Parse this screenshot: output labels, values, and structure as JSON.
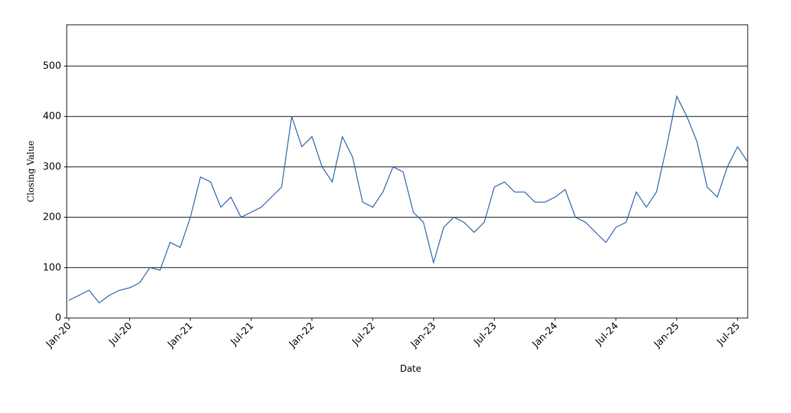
{
  "chart_data": {
    "type": "line",
    "x_label": "Date",
    "y_label": "Closing Value",
    "x": [
      "Jan-20",
      "Feb-20",
      "Mar-20",
      "Apr-20",
      "May-20",
      "Jun-20",
      "Jul-20",
      "Aug-20",
      "Sep-20",
      "Oct-20",
      "Nov-20",
      "Dec-20",
      "Jan-21",
      "Feb-21",
      "Mar-21",
      "Apr-21",
      "May-21",
      "Jun-21",
      "Jul-21",
      "Aug-21",
      "Sep-21",
      "Oct-21",
      "Nov-21",
      "Dec-21",
      "Jan-22",
      "Feb-22",
      "Mar-22",
      "Apr-22",
      "May-22",
      "Jun-22",
      "Jul-22",
      "Aug-22",
      "Sep-22",
      "Oct-22",
      "Nov-22",
      "Dec-22",
      "Jan-23",
      "Feb-23",
      "Mar-23",
      "Apr-23",
      "May-23",
      "Jun-23",
      "Jul-23",
      "Aug-23",
      "Sep-23",
      "Oct-23",
      "Nov-23",
      "Dec-23",
      "Jan-24",
      "Feb-24",
      "Mar-24",
      "Apr-24",
      "May-24",
      "Jun-24",
      "Jul-24",
      "Aug-24",
      "Sep-24",
      "Oct-24",
      "Nov-24",
      "Dec-24",
      "Jan-25",
      "Feb-25",
      "Mar-25",
      "Apr-25",
      "May-25",
      "Jun-25",
      "Jul-25",
      "Aug-25"
    ],
    "series": [
      {
        "name": "Closing Value",
        "color": "#2a62a8",
        "values": [
          35,
          45,
          55,
          30,
          45,
          55,
          60,
          70,
          100,
          95,
          150,
          140,
          200,
          280,
          270,
          220,
          240,
          200,
          210,
          220,
          240,
          260,
          400,
          340,
          360,
          300,
          270,
          360,
          320,
          230,
          220,
          250,
          300,
          290,
          210,
          190,
          110,
          180,
          200,
          190,
          170,
          190,
          260,
          270,
          250,
          250,
          230,
          230,
          240,
          255,
          200,
          190,
          170,
          150,
          180,
          190,
          250,
          220,
          250,
          340,
          440,
          400,
          350,
          260,
          240,
          300,
          340,
          310
        ]
      }
    ],
    "xticks": [
      "Jan-20",
      "Jul-20",
      "Jan-21",
      "Jul-21",
      "Jan-22",
      "Jul-22",
      "Jan-23",
      "Jul-23",
      "Jan-24",
      "Jul-24",
      "Jan-25",
      "Jul-25"
    ],
    "ylim": [
      0,
      582
    ],
    "yticks": [
      0,
      100,
      200,
      300,
      400,
      500
    ],
    "grid": true
  }
}
